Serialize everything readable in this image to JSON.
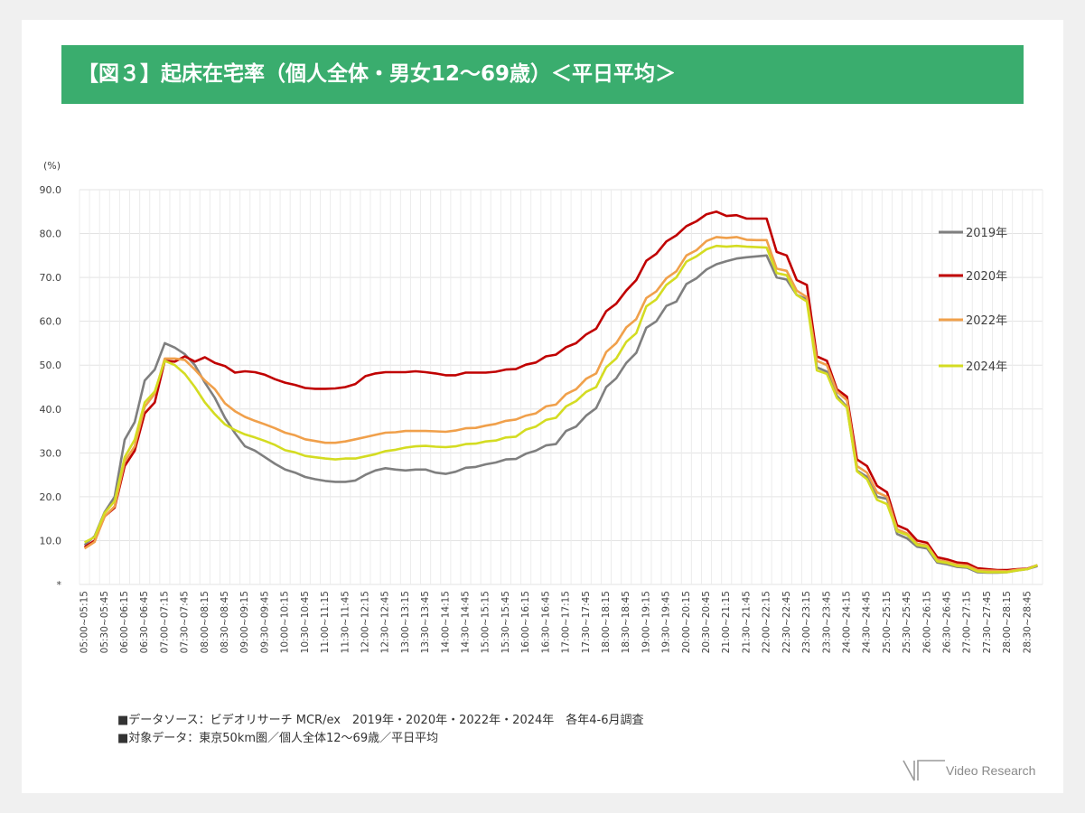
{
  "header": {
    "title": "【図３】起床在宅率（個人全体・男女12～69歳）＜平日平均＞"
  },
  "footer": {
    "source": "■データソース：ビデオリサーチ MCR/ex　2019年・2020年・2022年・2024年　各年4-6月調査",
    "target": "■対象データ：東京50km圏／個人全体12～69歳／平日平均"
  },
  "logo": {
    "text": "Video Research"
  },
  "chart_data": {
    "type": "line",
    "y_unit": "(%)",
    "ylim": [
      0,
      90
    ],
    "yticks": [
      {
        "value": 0,
        "label": "*"
      },
      {
        "value": 10,
        "label": "10.0"
      },
      {
        "value": 20,
        "label": "20.0"
      },
      {
        "value": 30,
        "label": "30.0"
      },
      {
        "value": 40,
        "label": "40.0"
      },
      {
        "value": 50,
        "label": "50.0"
      },
      {
        "value": 60,
        "label": "60.0"
      },
      {
        "value": 70,
        "label": "70.0"
      },
      {
        "value": 80,
        "label": "80.0"
      },
      {
        "value": 90,
        "label": "90.0"
      }
    ],
    "grid": true,
    "legend_position": "right",
    "x_first_start": "05:00",
    "x_interval_minutes": 15,
    "x_count": 96,
    "x_label_every": 2,
    "series": [
      {
        "name": "2019年",
        "color": "#7f7f7f",
        "values": [
          9.0,
          11.0,
          16.5,
          20.0,
          33.0,
          37.0,
          46.5,
          49.0,
          55.0,
          54.0,
          52.5,
          50.0,
          46.0,
          42.5,
          38.0,
          34.5,
          31.5,
          30.5,
          29.0,
          27.5,
          26.2,
          25.5,
          24.5,
          24.0,
          23.6,
          23.4,
          23.4,
          23.7,
          25.0,
          26.0,
          26.5,
          26.2,
          26.0,
          26.2,
          26.2,
          25.5,
          25.2,
          25.7,
          26.6,
          26.8,
          27.4,
          27.8,
          28.5,
          28.6,
          29.8,
          30.5,
          31.7,
          32.0,
          35.0,
          36.0,
          38.5,
          40.2,
          45.0,
          47.0,
          50.5,
          52.8,
          58.5,
          60.0,
          63.5,
          64.5,
          68.5,
          69.8,
          71.8,
          73.0,
          73.7,
          74.3,
          74.6,
          74.8,
          75.0,
          70.0,
          69.5,
          66.0,
          65.0,
          49.5,
          48.5,
          43.0,
          40.5,
          26.0,
          24.5,
          20.0,
          19.5,
          11.5,
          10.5,
          8.6,
          8.2,
          5.0,
          4.6,
          4.0,
          3.8,
          2.8,
          2.7,
          2.7,
          2.8,
          3.2,
          3.5,
          4.2
        ]
      },
      {
        "name": "2020年",
        "color": "#c00000",
        "values": [
          8.5,
          10.0,
          15.5,
          17.5,
          27.0,
          30.5,
          39.0,
          41.5,
          51.0,
          50.8,
          52.0,
          50.8,
          51.8,
          50.5,
          49.8,
          48.3,
          48.6,
          48.4,
          47.8,
          46.8,
          46.0,
          45.5,
          44.8,
          44.6,
          44.6,
          44.7,
          45.0,
          45.7,
          47.5,
          48.1,
          48.4,
          48.4,
          48.4,
          48.6,
          48.4,
          48.1,
          47.7,
          47.7,
          48.3,
          48.3,
          48.3,
          48.5,
          49.0,
          49.1,
          50.1,
          50.6,
          52.0,
          52.4,
          54.1,
          55.0,
          57.0,
          58.3,
          62.3,
          64.0,
          67.0,
          69.4,
          73.8,
          75.4,
          78.2,
          79.6,
          81.7,
          82.8,
          84.4,
          85.0,
          84.0,
          84.2,
          83.4,
          83.4,
          83.4,
          75.8,
          75.0,
          69.4,
          68.3,
          52.0,
          51.0,
          44.5,
          42.8,
          28.5,
          27.0,
          22.5,
          21.0,
          13.5,
          12.5,
          10.0,
          9.5,
          6.2,
          5.7,
          5.0,
          4.8,
          3.7,
          3.5,
          3.3,
          3.3,
          3.5,
          3.6,
          4.4
        ]
      },
      {
        "name": "2022年",
        "color": "#f0a04b",
        "values": [
          8.2,
          9.7,
          15.5,
          17.8,
          28.0,
          31.5,
          40.5,
          43.5,
          51.5,
          51.5,
          51.2,
          49.0,
          46.5,
          44.5,
          41.3,
          39.5,
          38.2,
          37.3,
          36.5,
          35.6,
          34.6,
          34.0,
          33.1,
          32.7,
          32.3,
          32.3,
          32.6,
          33.1,
          33.6,
          34.1,
          34.6,
          34.7,
          35.0,
          35.0,
          35.0,
          34.9,
          34.8,
          35.1,
          35.6,
          35.7,
          36.2,
          36.6,
          37.3,
          37.6,
          38.5,
          39.0,
          40.6,
          41.0,
          43.4,
          44.5,
          46.9,
          48.1,
          53.0,
          55.0,
          58.6,
          60.5,
          65.3,
          66.8,
          69.8,
          71.4,
          75.0,
          76.2,
          78.3,
          79.2,
          79.0,
          79.2,
          78.6,
          78.5,
          78.5,
          72.0,
          71.5,
          67.0,
          65.5,
          51.0,
          50.0,
          44.0,
          42.0,
          27.0,
          25.5,
          21.0,
          20.0,
          12.6,
          11.6,
          9.3,
          8.9,
          5.6,
          5.2,
          4.5,
          4.3,
          3.3,
          3.2,
          3.1,
          3.0,
          3.4,
          3.5,
          4.4
        ]
      },
      {
        "name": "2024年",
        "color": "#d4dc22",
        "values": [
          9.6,
          10.8,
          16.3,
          19.0,
          29.0,
          33.0,
          41.5,
          44.0,
          51.0,
          50.0,
          48.0,
          45.0,
          41.5,
          38.8,
          36.5,
          35.2,
          34.2,
          33.5,
          32.7,
          31.8,
          30.6,
          30.1,
          29.3,
          29.0,
          28.7,
          28.5,
          28.7,
          28.7,
          29.2,
          29.7,
          30.4,
          30.7,
          31.2,
          31.5,
          31.6,
          31.4,
          31.3,
          31.5,
          32.0,
          32.1,
          32.6,
          32.8,
          33.5,
          33.7,
          35.3,
          36.0,
          37.5,
          38.0,
          40.6,
          41.8,
          43.9,
          45.0,
          49.5,
          51.5,
          55.3,
          57.3,
          63.4,
          65.0,
          68.3,
          70.0,
          73.6,
          74.8,
          76.4,
          77.2,
          77.0,
          77.2,
          77.0,
          76.9,
          76.8,
          71.0,
          70.5,
          66.0,
          64.5,
          48.8,
          48.0,
          42.5,
          40.3,
          25.8,
          24.0,
          19.3,
          18.3,
          12.1,
          11.3,
          9.0,
          8.6,
          5.3,
          4.9,
          4.2,
          4.0,
          3.0,
          2.8,
          2.8,
          2.8,
          3.2,
          3.5,
          4.4
        ]
      }
    ]
  }
}
